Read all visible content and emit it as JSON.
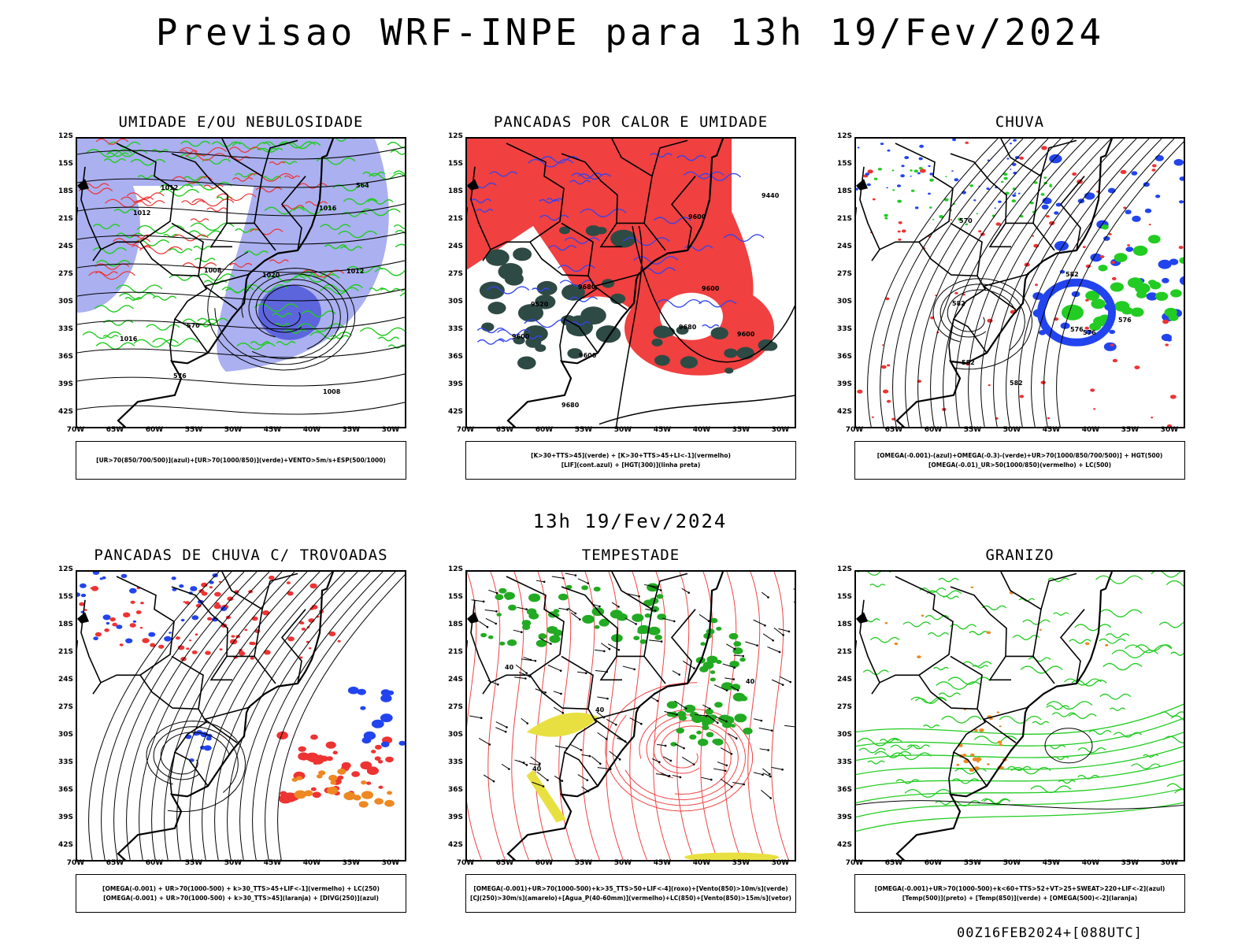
{
  "title": "Previsao WRF-INPE  para 13h 19/Fev/2024",
  "subtitle": "13h 19/Fev/2024",
  "footer": "00Z16FEB2024+[088UTC]",
  "axes": {
    "y_ticks": [
      "12S",
      "15S",
      "18S",
      "21S",
      "24S",
      "27S",
      "30S",
      "33S",
      "36S",
      "39S",
      "42S"
    ],
    "x_ticks": [
      "70W",
      "65W",
      "60W",
      "55W",
      "50W",
      "45W",
      "40W",
      "35W",
      "30W"
    ]
  },
  "panels": [
    {
      "title": "UMIDADE E/OU NEBULOSIDADE",
      "legend": [
        "[UR>70(850/700/500)](azul)+[UR>70(1000/850)](verde)+VENTO>5m/s+ESP(500/1000)"
      ],
      "contour_labels": [
        "1012",
        "1012",
        "1008",
        "1008",
        "1016",
        "1012",
        "1020",
        "576",
        "570",
        "564",
        "1016"
      ],
      "colors": {
        "fill": "#aab0f0",
        "fill_dark": "#4a52d8",
        "green": "#22cc22",
        "red": "#ee3333"
      }
    },
    {
      "title": "PANCADAS POR CALOR E UMIDADE",
      "legend": [
        "[K>30+TTS>45](verde) + [K>30+TTS>45+LI<-1](vermelho)",
        "[LIF](cont.azul) + [HGT(300)](linha preta)"
      ],
      "contour_labels": [
        "9680",
        "9680",
        "9680",
        "9600",
        "9600",
        "9600",
        "9520",
        "9440",
        "9600",
        "9600"
      ],
      "colors": {
        "fill": "#f04040",
        "fill_dark": "#2e4a44",
        "green": "#2e4a44",
        "red": "#f04040"
      }
    },
    {
      "title": "CHUVA",
      "legend": [
        "[OMEGA(-0.001)-(azul)+OMEGA(-0.3)-(verde)+UR>70(1000/850/700/500)] + HGT(500)",
        "[OMEGA(-0.01)_UR>50(1000/850)(vermelho) + LC(500)"
      ],
      "contour_labels": [
        "582",
        "582",
        "582",
        "576",
        "576",
        "570",
        "576",
        "582"
      ],
      "colors": {
        "fill": "#2244ee",
        "fill_dark": "#22cc22",
        "green": "#22cc22",
        "red": "#ee3333"
      }
    },
    {
      "title": "PANCADAS DE CHUVA C/ TROVOADAS",
      "legend": [
        "[OMEGA(-0.001) + UR>70(1000-500) + k>30_TTS>45+LIF<-1](vermelho) + LC(250)",
        "[OMEGA(-0.001) + UR>70(1000-500) + k>30_TTS>45](laranja) + [DIVG(250)](azul)"
      ],
      "contour_labels": [],
      "colors": {
        "fill": "#ee3333",
        "fill_dark": "#ee8822",
        "green": "#2244ee",
        "red": "#ee3333"
      }
    },
    {
      "title": "TEMPESTADE",
      "legend": [
        "[OMEGA(-0.001)+UR>70(1000-500)+k>35_TTS>50+LIF<-4](roxo)+[Vento(850)>10m/s](verde)",
        "[CJ(250)>30m/s](amarelo)+[Agua_P(40-60mm)](vermelho)+LC(850)+[Vento(850)>15m/s](vetor)"
      ],
      "contour_labels": [
        "40",
        "40",
        "40",
        "40"
      ],
      "colors": {
        "fill": "#22aa22",
        "fill_dark": "#e8e040",
        "green": "#22aa22",
        "red": "#ee4444"
      }
    },
    {
      "title": "GRANIZO",
      "legend": [
        "[OMEGA(-0.001)+UR>70(1000-500)+k<60+TTS>52+VT>25+SWEAT>220+LIF<-2](azul)",
        "[Temp(500)](preto) + [Temp(850)](verde) + [OMEGA(500)<-2](laranja)"
      ],
      "contour_labels": [],
      "colors": {
        "fill": "#ee8822",
        "fill_dark": "#2244ee",
        "green": "#22cc22",
        "red": "#ee8822"
      }
    }
  ]
}
